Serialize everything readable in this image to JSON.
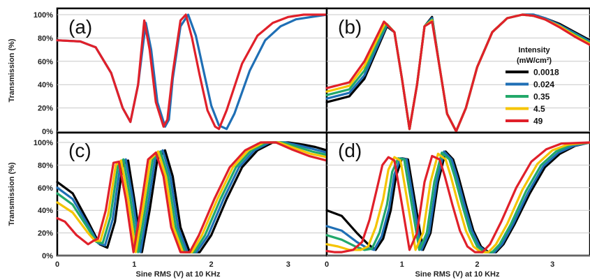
{
  "colors": {
    "black": "#000000",
    "blue": "#1f6fb5",
    "green": "#22a86a",
    "yellow": "#f5c400",
    "red": "#e0202a"
  },
  "legend": {
    "title_line1": "Intensity",
    "title_line2": "(mW/cm²)",
    "entries": [
      {
        "label": "0.0018",
        "color": "#000000"
      },
      {
        "label": "0.024",
        "color": "#1f6fb5"
      },
      {
        "label": "0.35",
        "color": "#22a86a"
      },
      {
        "label": "4.5",
        "color": "#f5c400"
      },
      {
        "label": "49",
        "color": "#e0202a"
      }
    ]
  },
  "chart_data": [
    {
      "type": "line",
      "panel": "(a)",
      "ylabel": "Transmission (%)",
      "xlabel": "",
      "xlim": [
        0,
        3.5
      ],
      "ylim": [
        0,
        100
      ],
      "yticks": [
        "0%",
        "20%",
        "40%",
        "60%",
        "80%",
        "100%"
      ],
      "xticks": [],
      "series": [
        {
          "color": "#1f6fb5",
          "x": [
            0,
            0.3,
            0.5,
            0.7,
            0.85,
            0.95,
            1.05,
            1.15,
            1.22,
            1.3,
            1.4,
            1.45,
            1.5,
            1.6,
            1.7,
            1.8,
            1.9,
            2.0,
            2.1,
            2.2,
            2.3,
            2.5,
            2.7,
            2.9,
            3.1,
            3.3,
            3.5
          ],
          "y": [
            78,
            77,
            72,
            50,
            20,
            8,
            40,
            93,
            70,
            25,
            4,
            10,
            45,
            90,
            100,
            82,
            52,
            22,
            5,
            2,
            15,
            52,
            78,
            90,
            96,
            98,
            100
          ]
        },
        {
          "color": "#e0202a",
          "x": [
            0,
            0.3,
            0.5,
            0.7,
            0.85,
            0.95,
            1.05,
            1.13,
            1.2,
            1.28,
            1.38,
            1.43,
            1.5,
            1.6,
            1.67,
            1.75,
            1.85,
            1.95,
            2.05,
            2.1,
            2.2,
            2.4,
            2.6,
            2.8,
            3.0,
            3.2,
            3.5
          ],
          "y": [
            78,
            77,
            72,
            50,
            20,
            8,
            40,
            95,
            70,
            25,
            4,
            10,
            50,
            95,
            100,
            80,
            48,
            18,
            4,
            2,
            18,
            58,
            82,
            93,
            98,
            100,
            100
          ]
        }
      ]
    },
    {
      "type": "line",
      "panel": "(b)",
      "ylabel": "",
      "xlabel": "",
      "xlim": [
        0,
        3.5
      ],
      "ylim": [
        0,
        100
      ],
      "yticks": [],
      "xticks": [],
      "series": [
        {
          "name": "0.0018",
          "color": "#000000",
          "x": [
            0,
            0.3,
            0.5,
            0.7,
            0.8,
            0.9,
            1.0,
            1.1,
            1.2,
            1.3,
            1.4,
            1.5,
            1.6,
            1.72,
            1.85,
            2.0,
            2.2,
            2.4,
            2.6,
            2.75,
            2.9,
            3.1,
            3.3,
            3.5
          ],
          "y": [
            25,
            30,
            45,
            75,
            90,
            85,
            45,
            2,
            40,
            90,
            98,
            55,
            15,
            0,
            20,
            55,
            85,
            97,
            100,
            100,
            97,
            92,
            85,
            78
          ]
        },
        {
          "name": "0.024",
          "color": "#1f6fb5",
          "x": [
            0,
            0.3,
            0.5,
            0.7,
            0.8,
            0.9,
            1.0,
            1.1,
            1.2,
            1.3,
            1.4,
            1.5,
            1.6,
            1.72,
            1.85,
            2.0,
            2.2,
            2.4,
            2.6,
            2.75,
            2.9,
            3.1,
            3.3,
            3.5
          ],
          "y": [
            28,
            33,
            48,
            77,
            91,
            85,
            45,
            2,
            40,
            90,
            97,
            55,
            15,
            0,
            20,
            55,
            85,
            97,
            100,
            100,
            97,
            91,
            84,
            77
          ]
        },
        {
          "name": "0.35",
          "color": "#22a86a",
          "x": [
            0,
            0.3,
            0.5,
            0.7,
            0.8,
            0.9,
            1.0,
            1.1,
            1.2,
            1.3,
            1.4,
            1.5,
            1.6,
            1.72,
            1.85,
            2.0,
            2.2,
            2.4,
            2.6,
            2.75,
            2.9,
            3.1,
            3.3,
            3.5
          ],
          "y": [
            31,
            36,
            52,
            80,
            92,
            85,
            45,
            2,
            40,
            90,
            96,
            55,
            15,
            0,
            20,
            55,
            85,
            97,
            100,
            99,
            96,
            90,
            83,
            76
          ]
        },
        {
          "name": "4.5",
          "color": "#f5c400",
          "x": [
            0,
            0.3,
            0.5,
            0.7,
            0.78,
            0.9,
            1.0,
            1.1,
            1.2,
            1.3,
            1.4,
            1.5,
            1.6,
            1.72,
            1.85,
            2.0,
            2.2,
            2.4,
            2.6,
            2.75,
            2.9,
            3.1,
            3.3,
            3.5
          ],
          "y": [
            34,
            39,
            56,
            83,
            93,
            85,
            45,
            2,
            40,
            90,
            95,
            55,
            15,
            0,
            20,
            55,
            85,
            97,
            100,
            99,
            96,
            90,
            82,
            75
          ]
        },
        {
          "name": "49",
          "color": "#e0202a",
          "x": [
            0,
            0.3,
            0.5,
            0.7,
            0.76,
            0.9,
            1.0,
            1.1,
            1.2,
            1.3,
            1.4,
            1.5,
            1.6,
            1.72,
            1.85,
            2.0,
            2.2,
            2.4,
            2.6,
            2.75,
            2.9,
            3.1,
            3.3,
            3.5
          ],
          "y": [
            37,
            42,
            60,
            86,
            94,
            85,
            45,
            2,
            40,
            90,
            94,
            55,
            15,
            0,
            20,
            55,
            85,
            97,
            100,
            99,
            96,
            89,
            81,
            74
          ]
        }
      ]
    },
    {
      "type": "line",
      "panel": "(c)",
      "ylabel": "Transmission (%)",
      "xlabel": "Sine RMS (V) at 10 KHz",
      "xlim": [
        0,
        3.5
      ],
      "ylim": [
        0,
        100
      ],
      "yticks": [
        "0%",
        "20%",
        "40%",
        "60%",
        "80%",
        "100%"
      ],
      "xticks": [
        "0",
        "1",
        "2",
        "3"
      ],
      "series": [
        {
          "name": "0.0018",
          "color": "#000000",
          "x": [
            0,
            0.2,
            0.4,
            0.55,
            0.65,
            0.75,
            0.85,
            0.92,
            1.0,
            1.1,
            1.2,
            1.3,
            1.4,
            1.5,
            1.6,
            1.72,
            1.85,
            2.0,
            2.2,
            2.4,
            2.6,
            2.8,
            3.0,
            3.2,
            3.35,
            3.5
          ],
          "y": [
            65,
            55,
            30,
            10,
            7,
            30,
            80,
            84,
            50,
            3,
            40,
            85,
            93,
            70,
            25,
            3,
            3,
            18,
            50,
            78,
            93,
            100,
            100,
            98,
            96,
            93
          ]
        },
        {
          "name": "0.024",
          "color": "#1f6fb5",
          "x": [
            0,
            0.2,
            0.4,
            0.53,
            0.62,
            0.72,
            0.82,
            0.89,
            0.98,
            1.08,
            1.17,
            1.27,
            1.37,
            1.47,
            1.57,
            1.69,
            1.81,
            1.96,
            2.16,
            2.36,
            2.56,
            2.76,
            2.96,
            3.16,
            3.33,
            3.5
          ],
          "y": [
            60,
            50,
            27,
            11,
            9,
            32,
            80,
            85,
            50,
            3,
            40,
            85,
            93,
            70,
            25,
            3,
            3,
            18,
            50,
            78,
            93,
            100,
            100,
            97,
            94,
            91
          ]
        },
        {
          "name": "0.35",
          "color": "#22a86a",
          "x": [
            0,
            0.2,
            0.4,
            0.51,
            0.59,
            0.69,
            0.79,
            0.86,
            0.95,
            1.05,
            1.14,
            1.24,
            1.34,
            1.44,
            1.54,
            1.66,
            1.78,
            1.92,
            2.12,
            2.32,
            2.52,
            2.72,
            2.92,
            3.12,
            3.31,
            3.5
          ],
          "y": [
            55,
            45,
            24,
            12,
            11,
            34,
            80,
            85,
            50,
            3,
            40,
            85,
            92,
            70,
            25,
            3,
            3,
            18,
            50,
            78,
            93,
            100,
            100,
            96,
            92,
            89
          ]
        },
        {
          "name": "4.5",
          "color": "#f5c400",
          "x": [
            0,
            0.2,
            0.4,
            0.49,
            0.56,
            0.66,
            0.76,
            0.83,
            0.92,
            1.02,
            1.11,
            1.21,
            1.31,
            1.41,
            1.51,
            1.63,
            1.75,
            1.88,
            2.08,
            2.28,
            2.48,
            2.68,
            2.88,
            3.08,
            3.29,
            3.5
          ],
          "y": [
            47,
            38,
            20,
            13,
            13,
            36,
            80,
            84,
            50,
            3,
            40,
            85,
            92,
            70,
            25,
            3,
            3,
            18,
            50,
            78,
            93,
            100,
            100,
            95,
            90,
            87
          ]
        },
        {
          "name": "49",
          "color": "#e0202a",
          "x": [
            0,
            0.1,
            0.25,
            0.4,
            0.47,
            0.53,
            0.63,
            0.73,
            0.8,
            0.89,
            0.99,
            1.08,
            1.18,
            1.28,
            1.38,
            1.48,
            1.6,
            1.72,
            1.84,
            2.04,
            2.24,
            2.44,
            2.64,
            2.84,
            3.04,
            3.27,
            3.5
          ],
          "y": [
            33,
            30,
            18,
            10,
            13,
            15,
            40,
            82,
            83,
            50,
            3,
            40,
            85,
            91,
            70,
            25,
            3,
            3,
            18,
            50,
            78,
            93,
            100,
            100,
            94,
            88,
            84
          ]
        }
      ]
    },
    {
      "type": "line",
      "panel": "(d)",
      "ylabel": "",
      "xlabel": "Sine RMS (V) at 10 KHz",
      "xlim": [
        0,
        3.5
      ],
      "ylim": [
        0,
        100
      ],
      "yticks": [],
      "xticks": [
        "0",
        "1",
        "2",
        "3"
      ],
      "series": [
        {
          "name": "0.0018",
          "color": "#000000",
          "x": [
            0,
            0.2,
            0.4,
            0.55,
            0.65,
            0.75,
            0.85,
            0.92,
            1.0,
            1.08,
            1.18,
            1.28,
            1.38,
            1.48,
            1.58,
            1.68,
            1.75,
            1.85,
            1.95,
            2.05,
            2.15,
            2.25,
            2.35,
            2.5,
            2.7,
            2.9,
            3.1,
            3.3,
            3.5
          ],
          "y": [
            40,
            35,
            20,
            10,
            5,
            15,
            40,
            70,
            86,
            85,
            45,
            5,
            20,
            65,
            92,
            85,
            70,
            45,
            22,
            8,
            3,
            3,
            10,
            28,
            55,
            78,
            90,
            97,
            100
          ]
        },
        {
          "name": "0.024",
          "color": "#1f6fb5",
          "x": [
            0,
            0.2,
            0.4,
            0.53,
            0.63,
            0.73,
            0.83,
            0.9,
            0.98,
            1.06,
            1.16,
            1.26,
            1.36,
            1.46,
            1.56,
            1.66,
            1.73,
            1.83,
            1.93,
            2.03,
            2.13,
            2.23,
            2.33,
            2.48,
            2.68,
            2.88,
            3.08,
            3.28,
            3.5
          ],
          "y": [
            26,
            22,
            12,
            7,
            5,
            17,
            42,
            72,
            86,
            85,
            45,
            5,
            20,
            65,
            92,
            85,
            70,
            45,
            22,
            8,
            3,
            3,
            10,
            28,
            56,
            79,
            91,
            97,
            100
          ]
        },
        {
          "name": "0.35",
          "color": "#22a86a",
          "x": [
            0,
            0.2,
            0.38,
            0.5,
            0.6,
            0.7,
            0.8,
            0.87,
            0.95,
            1.03,
            1.13,
            1.23,
            1.33,
            1.43,
            1.53,
            1.63,
            1.7,
            1.8,
            1.9,
            2.0,
            2.1,
            2.2,
            2.3,
            2.45,
            2.65,
            2.85,
            3.05,
            3.25,
            3.5
          ],
          "y": [
            18,
            14,
            8,
            5,
            6,
            20,
            45,
            74,
            86,
            85,
            45,
            5,
            20,
            65,
            91,
            85,
            70,
            45,
            22,
            8,
            3,
            3,
            10,
            28,
            57,
            80,
            92,
            98,
            100
          ]
        },
        {
          "name": "4.5",
          "color": "#f5c400",
          "x": [
            0,
            0.15,
            0.3,
            0.45,
            0.55,
            0.65,
            0.75,
            0.82,
            0.9,
            0.98,
            1.08,
            1.18,
            1.28,
            1.38,
            1.48,
            1.58,
            1.65,
            1.75,
            1.85,
            1.95,
            2.05,
            2.15,
            2.25,
            2.4,
            2.6,
            2.8,
            3.0,
            3.2,
            3.5
          ],
          "y": [
            10,
            8,
            5,
            5,
            8,
            25,
            50,
            76,
            87,
            84,
            45,
            5,
            20,
            65,
            90,
            85,
            70,
            45,
            22,
            8,
            3,
            3,
            10,
            28,
            58,
            81,
            93,
            98,
            100
          ]
        },
        {
          "name": "49",
          "color": "#e0202a",
          "x": [
            0,
            0.1,
            0.2,
            0.35,
            0.47,
            0.57,
            0.67,
            0.74,
            0.82,
            0.9,
            1.0,
            1.1,
            1.2,
            1.3,
            1.4,
            1.5,
            1.57,
            1.67,
            1.77,
            1.87,
            1.97,
            2.07,
            2.17,
            2.32,
            2.52,
            2.72,
            2.92,
            3.12,
            3.5
          ],
          "y": [
            4,
            3,
            3,
            5,
            12,
            32,
            60,
            80,
            87,
            84,
            45,
            5,
            20,
            65,
            88,
            85,
            70,
            45,
            22,
            8,
            3,
            3,
            10,
            30,
            60,
            83,
            94,
            99,
            100
          ]
        }
      ]
    }
  ]
}
